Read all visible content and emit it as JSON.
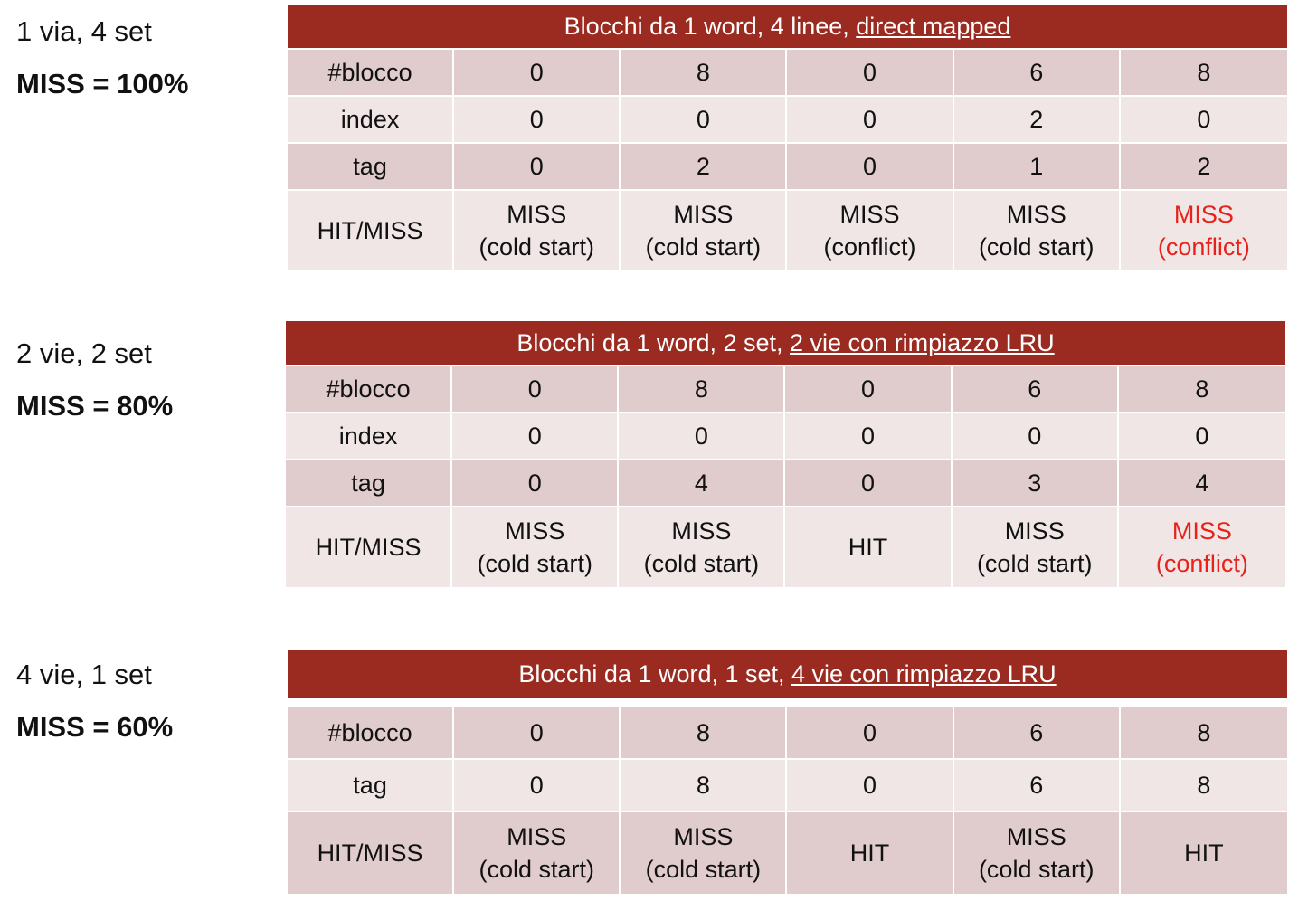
{
  "sections": [
    {
      "label_config": "1 via, 4 set",
      "label_miss": "MISS = 100%",
      "title_plain": "Blocchi da 1 word, 4 linee, ",
      "title_underlined": "direct mapped",
      "rows": [
        {
          "head": "#blocco",
          "cells": [
            "0",
            "8",
            "0",
            "6",
            "8"
          ]
        },
        {
          "head": "index",
          "cells": [
            "0",
            "0",
            "0",
            "2",
            "0"
          ]
        },
        {
          "head": "tag",
          "cells": [
            "0",
            "2",
            "0",
            "1",
            "2"
          ]
        }
      ],
      "result_head": "HIT/MISS",
      "results": [
        {
          "line1": "MISS",
          "line2": "(cold start)",
          "highlight": false
        },
        {
          "line1": "MISS",
          "line2": "(cold start)",
          "highlight": false
        },
        {
          "line1": "MISS",
          "line2": "(conflict)",
          "highlight": false
        },
        {
          "line1": "MISS",
          "line2": "(cold start)",
          "highlight": false
        },
        {
          "line1": "MISS",
          "line2": "(conflict)",
          "highlight": true
        }
      ]
    },
    {
      "label_config": "2 vie, 2 set",
      "label_miss": "MISS = 80%",
      "title_plain": "Blocchi da 1 word, 2 set, ",
      "title_underlined": "2 vie con rimpiazzo LRU",
      "rows": [
        {
          "head": "#blocco",
          "cells": [
            "0",
            "8",
            "0",
            "6",
            "8"
          ]
        },
        {
          "head": "index",
          "cells": [
            "0",
            "0",
            "0",
            "0",
            "0"
          ]
        },
        {
          "head": "tag",
          "cells": [
            "0",
            "4",
            "0",
            "3",
            "4"
          ]
        }
      ],
      "result_head": "HIT/MISS",
      "results": [
        {
          "line1": "MISS",
          "line2": "(cold start)",
          "highlight": false
        },
        {
          "line1": "MISS",
          "line2": "(cold start)",
          "highlight": false
        },
        {
          "line1": "HIT",
          "line2": "",
          "highlight": false
        },
        {
          "line1": "MISS",
          "line2": "(cold start)",
          "highlight": false
        },
        {
          "line1": "MISS",
          "line2": "(conflict)",
          "highlight": true
        }
      ]
    },
    {
      "label_config": "4 vie, 1 set",
      "label_miss": "MISS = 60%",
      "title_plain": "Blocchi da 1 word, 1 set, ",
      "title_underlined": "4 vie con rimpiazzo LRU",
      "rows": [
        {
          "head": "#blocco",
          "cells": [
            "0",
            "8",
            "0",
            "6",
            "8"
          ]
        },
        {
          "head": "tag",
          "cells": [
            "0",
            "8",
            "0",
            "6",
            "8"
          ]
        }
      ],
      "result_head": "HIT/MISS",
      "results": [
        {
          "line1": "MISS",
          "line2": "(cold start)",
          "highlight": false
        },
        {
          "line1": "MISS",
          "line2": "(cold start)",
          "highlight": false
        },
        {
          "line1": "HIT",
          "line2": "",
          "highlight": false
        },
        {
          "line1": "MISS",
          "line2": "(cold start)",
          "highlight": false
        },
        {
          "line1": "HIT",
          "line2": "",
          "highlight": false
        }
      ]
    }
  ],
  "colors": {
    "header_bg": "#9b2a20",
    "row_dark": "#e0cccc",
    "row_light": "#efe6e5",
    "highlight_text": "#e8221b"
  }
}
